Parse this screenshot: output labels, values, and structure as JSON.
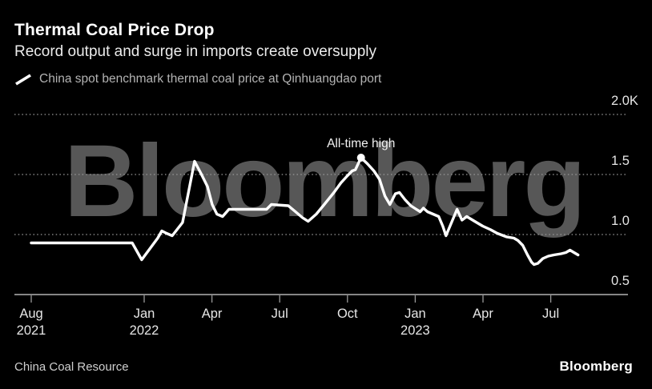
{
  "watermark": {
    "text": "Bloomberg",
    "color": "#575757"
  },
  "footer": {
    "source": "China Coal Resource",
    "brand": "Bloomberg"
  },
  "colors": {
    "background": "#000000",
    "title": "#ffffff",
    "subtitle": "#ececec",
    "legend_text": "#b3b3b3",
    "axis_labels": "#e6e6e6",
    "gridline": "#9a9a9a",
    "axis_line": "#b3b3b3",
    "series_line": "#ffffff",
    "watermark": "#575757"
  },
  "chart_data": {
    "type": "line",
    "title": "Thermal Coal Price Drop",
    "subtitle": "Record output and surge in imports create oversupply",
    "x_unit": "months since Aug 2021",
    "ylim": [
      0.5,
      2.1
    ],
    "grid": "horizontal dotted",
    "legend_position": "top-left",
    "y_ticks": [
      {
        "v": 2.0,
        "label": "2.0K"
      },
      {
        "v": 1.5,
        "label": "1.5"
      },
      {
        "v": 1.0,
        "label": "1.0"
      },
      {
        "v": 0.5,
        "label": "0.5"
      }
    ],
    "x_ticks": [
      {
        "m": 0,
        "lines": [
          "Aug",
          "2021"
        ]
      },
      {
        "m": 5,
        "lines": [
          "Jan",
          "2022"
        ]
      },
      {
        "m": 8,
        "lines": [
          "Apr"
        ]
      },
      {
        "m": 11,
        "lines": [
          "Jul"
        ]
      },
      {
        "m": 14,
        "lines": [
          "Oct"
        ]
      },
      {
        "m": 17,
        "lines": [
          "Jan",
          "2023"
        ]
      },
      {
        "m": 20,
        "lines": [
          "Apr"
        ]
      },
      {
        "m": 23,
        "lines": [
          "Jul"
        ]
      }
    ],
    "annotation": {
      "text": "All-time high",
      "m": 14.6,
      "v": 1.64
    },
    "series": [
      {
        "name": "China spot benchmark thermal coal price at Qinhuangdao port",
        "color": "#ffffff",
        "unit": "K yuan per ton",
        "points": [
          [
            0.0,
            0.93
          ],
          [
            4.47,
            0.93
          ],
          [
            4.89,
            0.79
          ],
          [
            5.6,
            0.97
          ],
          [
            5.78,
            1.03
          ],
          [
            5.99,
            1.01
          ],
          [
            6.24,
            0.99
          ],
          [
            6.7,
            1.1
          ],
          [
            7.23,
            1.61
          ],
          [
            7.51,
            1.51
          ],
          [
            7.8,
            1.4
          ],
          [
            8.01,
            1.25
          ],
          [
            8.22,
            1.17
          ],
          [
            8.47,
            1.15
          ],
          [
            8.75,
            1.21
          ],
          [
            9.11,
            1.21
          ],
          [
            10.42,
            1.21
          ],
          [
            10.63,
            1.25
          ],
          [
            11.38,
            1.24
          ],
          [
            11.7,
            1.19
          ],
          [
            12.01,
            1.14
          ],
          [
            12.26,
            1.11
          ],
          [
            12.62,
            1.17
          ],
          [
            12.97,
            1.25
          ],
          [
            13.4,
            1.35
          ],
          [
            13.71,
            1.43
          ],
          [
            14.0,
            1.49
          ],
          [
            14.21,
            1.53
          ],
          [
            14.35,
            1.54
          ],
          [
            14.6,
            1.64
          ],
          [
            14.88,
            1.59
          ],
          [
            15.17,
            1.53
          ],
          [
            15.42,
            1.46
          ],
          [
            15.66,
            1.32
          ],
          [
            15.88,
            1.25
          ],
          [
            16.12,
            1.34
          ],
          [
            16.3,
            1.35
          ],
          [
            16.55,
            1.29
          ],
          [
            16.8,
            1.24
          ],
          [
            17.05,
            1.21
          ],
          [
            17.22,
            1.19
          ],
          [
            17.36,
            1.22
          ],
          [
            17.54,
            1.19
          ],
          [
            17.79,
            1.17
          ],
          [
            18.04,
            1.15
          ],
          [
            18.22,
            1.07
          ],
          [
            18.36,
            0.99
          ],
          [
            18.85,
            1.21
          ],
          [
            19.07,
            1.12
          ],
          [
            19.28,
            1.15
          ],
          [
            19.63,
            1.11
          ],
          [
            19.99,
            1.07
          ],
          [
            20.34,
            1.04
          ],
          [
            20.63,
            1.01
          ],
          [
            21.05,
            0.98
          ],
          [
            21.37,
            0.97
          ],
          [
            21.55,
            0.95
          ],
          [
            21.76,
            0.91
          ],
          [
            21.97,
            0.83
          ],
          [
            22.15,
            0.77
          ],
          [
            22.26,
            0.75
          ],
          [
            22.43,
            0.76
          ],
          [
            22.65,
            0.8
          ],
          [
            22.89,
            0.82
          ],
          [
            23.14,
            0.83
          ],
          [
            23.46,
            0.84
          ],
          [
            23.67,
            0.85
          ],
          [
            23.85,
            0.87
          ],
          [
            24.03,
            0.85
          ],
          [
            24.21,
            0.83
          ]
        ]
      }
    ]
  }
}
